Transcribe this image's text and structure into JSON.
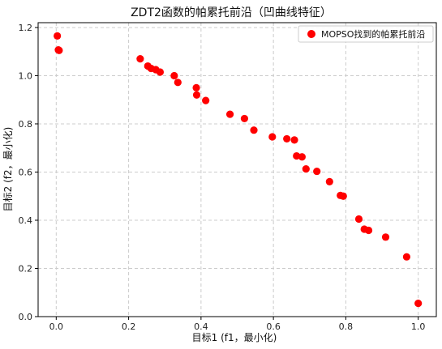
{
  "chart_data": {
    "type": "scatter",
    "title": "ZDT2函数的帕累托前沿（凹曲线特征）",
    "xlabel": "目标1 (f1，最小化)",
    "ylabel": "目标2 (f2，最小化)",
    "xlim": [
      -0.05,
      1.05
    ],
    "ylim": [
      0.0,
      1.22
    ],
    "xticks": [
      "0.0",
      "0.2",
      "0.4",
      "0.6",
      "0.8",
      "1.0"
    ],
    "yticks": [
      "0.0",
      "0.2",
      "0.4",
      "0.6",
      "0.8",
      "1.0",
      "1.2"
    ],
    "grid": true,
    "legend_position": "top-right",
    "series": [
      {
        "name": "MOPSO找到的帕累托前沿",
        "color": "#ff0000",
        "points": [
          [
            0.003,
            1.165
          ],
          [
            0.006,
            1.107
          ],
          [
            0.008,
            1.105
          ],
          [
            0.232,
            1.07
          ],
          [
            0.253,
            1.04
          ],
          [
            0.262,
            1.03
          ],
          [
            0.275,
            1.025
          ],
          [
            0.287,
            1.015
          ],
          [
            0.326,
            1.0
          ],
          [
            0.336,
            0.972
          ],
          [
            0.387,
            0.95
          ],
          [
            0.388,
            0.92
          ],
          [
            0.413,
            0.897
          ],
          [
            0.48,
            0.84
          ],
          [
            0.52,
            0.822
          ],
          [
            0.546,
            0.774
          ],
          [
            0.597,
            0.746
          ],
          [
            0.637,
            0.738
          ],
          [
            0.658,
            0.733
          ],
          [
            0.664,
            0.667
          ],
          [
            0.679,
            0.663
          ],
          [
            0.69,
            0.613
          ],
          [
            0.72,
            0.603
          ],
          [
            0.755,
            0.56
          ],
          [
            0.785,
            0.503
          ],
          [
            0.793,
            0.5
          ],
          [
            0.836,
            0.405
          ],
          [
            0.851,
            0.363
          ],
          [
            0.863,
            0.358
          ],
          [
            0.91,
            0.33
          ],
          [
            0.968,
            0.248
          ],
          [
            1.0,
            0.055
          ]
        ]
      }
    ]
  }
}
